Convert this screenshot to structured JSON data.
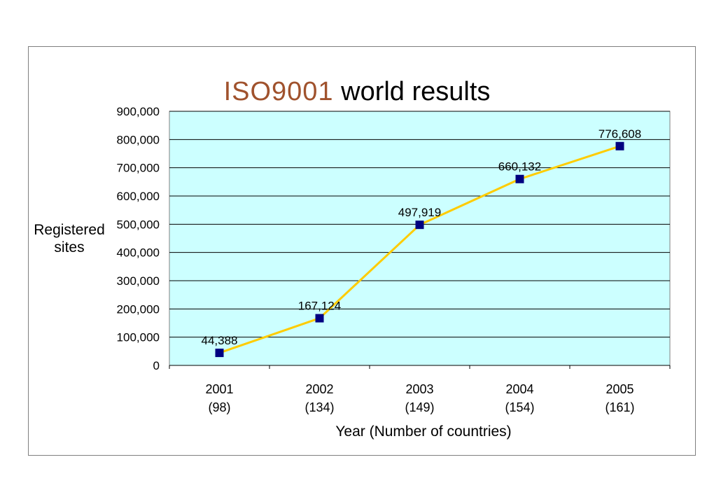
{
  "chart_data": {
    "type": "line",
    "title_part1": "ISO9001",
    "title_part2": "world results",
    "xlabel": "Year (Number of countries)",
    "ylabel": "Registered sites",
    "categories": [
      "2001",
      "2002",
      "2003",
      "2004",
      "2005"
    ],
    "category_sublabels": [
      "(98)",
      "(134)",
      "(149)",
      "(154)",
      "(161)"
    ],
    "series": [
      {
        "values": [
          44388,
          167124,
          497919,
          660132,
          776608
        ]
      }
    ],
    "data_labels": [
      "44,388",
      "167,124",
      "497,919",
      "660,132",
      "776,608"
    ],
    "ylim": [
      0,
      900000
    ],
    "yticks": [
      0,
      100000,
      200000,
      300000,
      400000,
      500000,
      600000,
      700000,
      800000,
      900000
    ],
    "ytick_labels": [
      "0",
      "100,000",
      "200,000",
      "300,000",
      "400,000",
      "500,000",
      "600,000",
      "700,000",
      "800,000",
      "900,000"
    ],
    "grid": true,
    "legend": false,
    "colors": {
      "plot_background": "#ccffff",
      "line": "#ffcc00",
      "marker": "#000080",
      "gridline": "#000000",
      "title_accent": "#a0522d"
    }
  }
}
